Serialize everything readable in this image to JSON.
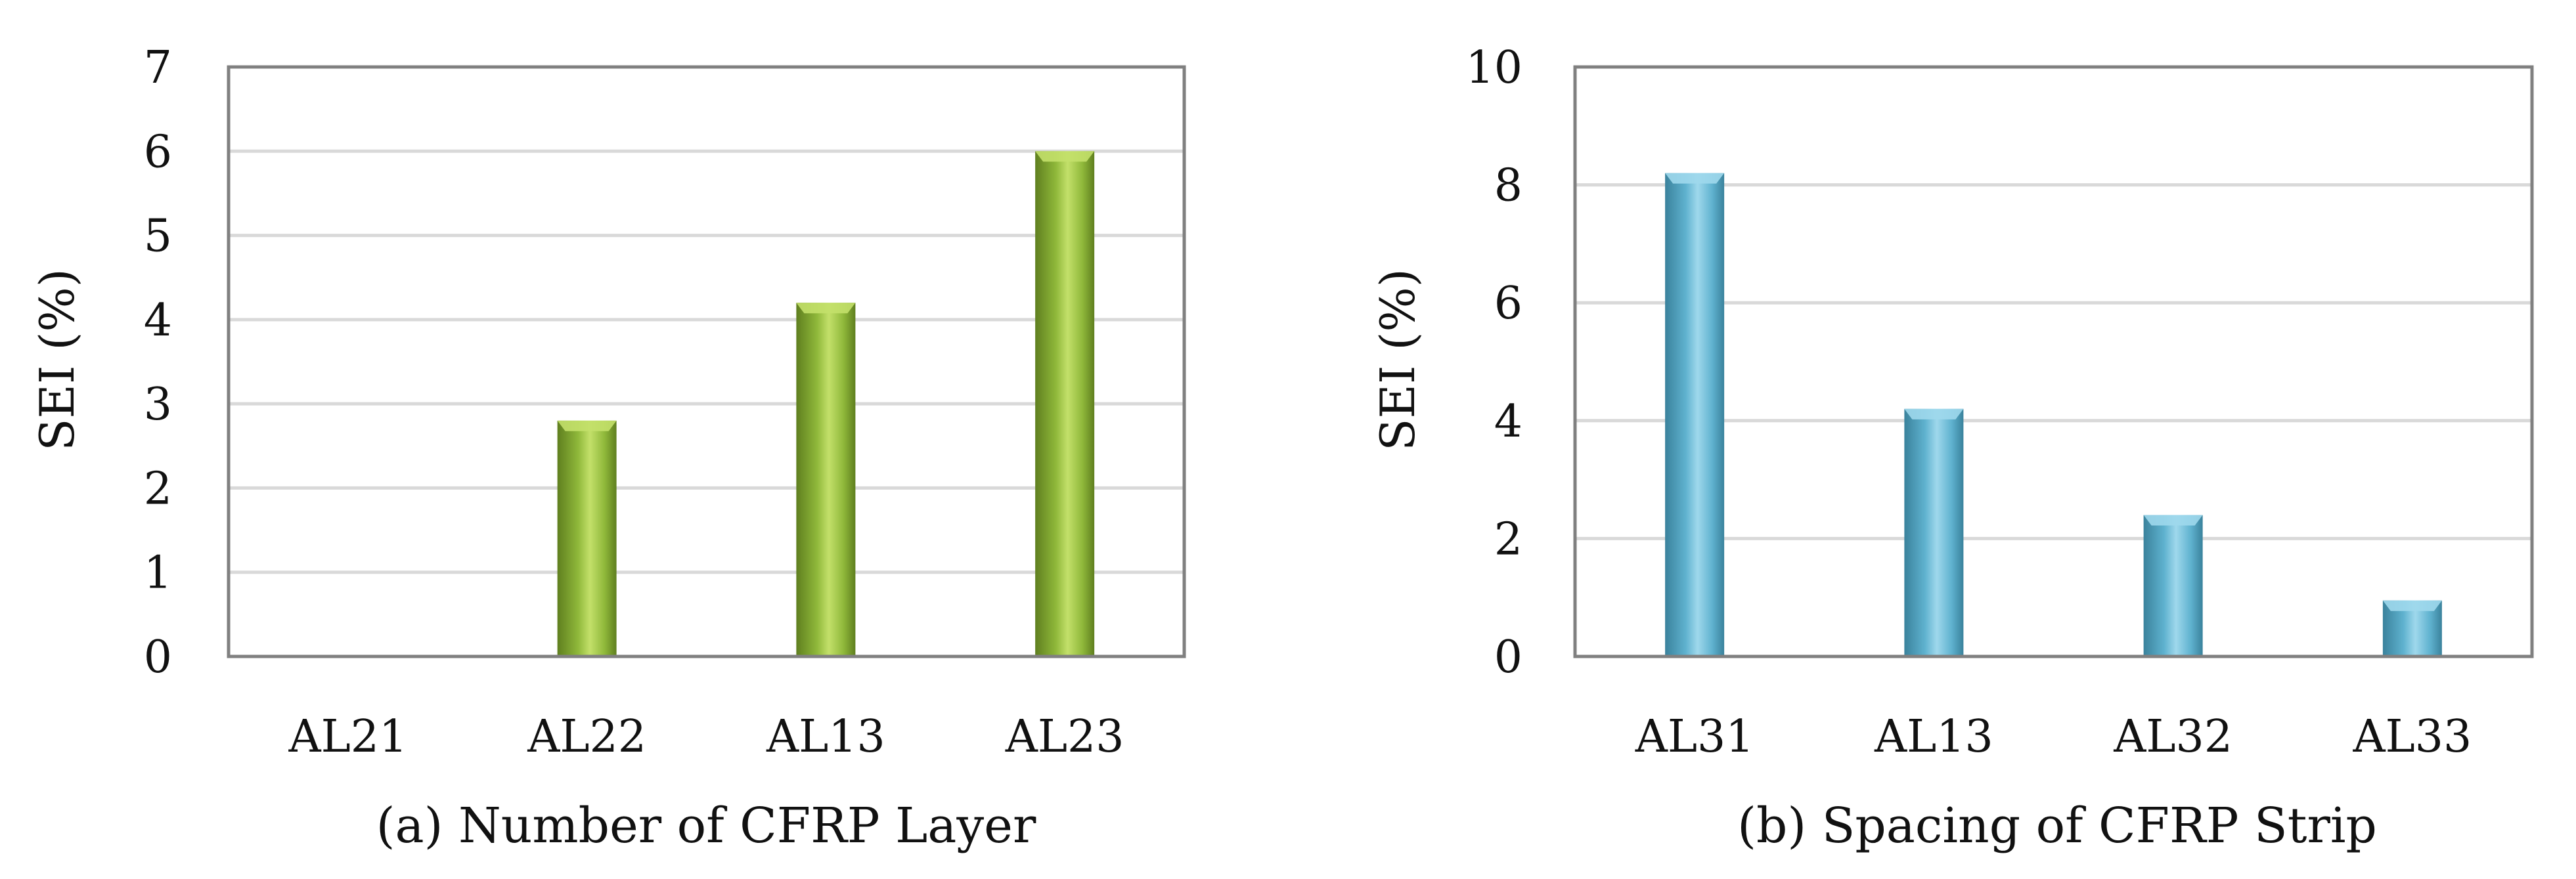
{
  "colors": {
    "panel_a_bar": "#8fb83a",
    "panel_a_bar_light": "#c3e06a",
    "panel_a_bar_dark": "#5f7f1f",
    "panel_b_bar": "#5fb2cf",
    "panel_b_bar_light": "#9fd8ec",
    "panel_b_bar_dark": "#3a829c",
    "gridline": "#d9d9d9",
    "frame": "#808080"
  },
  "chart_data": [
    {
      "type": "bar",
      "caption": "(a) Number of CFRP Layer",
      "ylabel": "SEI (%)",
      "xlabel": "",
      "categories": [
        "AL21",
        "AL22",
        "AL13",
        "AL23"
      ],
      "values": [
        0,
        2.8,
        4.2,
        6.0
      ],
      "ylim": [
        0,
        7
      ],
      "yticks": [
        "0",
        "1",
        "2",
        "3",
        "4",
        "5",
        "6",
        "7"
      ],
      "grid": true,
      "legend": "none"
    },
    {
      "type": "bar",
      "caption": "(b) Spacing of CFRP Strip",
      "ylabel": "SEI (%)",
      "xlabel": "",
      "categories": [
        "AL31",
        "AL13",
        "AL32",
        "AL33"
      ],
      "values": [
        8.2,
        4.2,
        2.4,
        0.95
      ],
      "ylim": [
        0,
        10
      ],
      "yticks": [
        "0",
        "2",
        "4",
        "6",
        "8",
        "10"
      ],
      "grid": true,
      "legend": "none"
    }
  ]
}
